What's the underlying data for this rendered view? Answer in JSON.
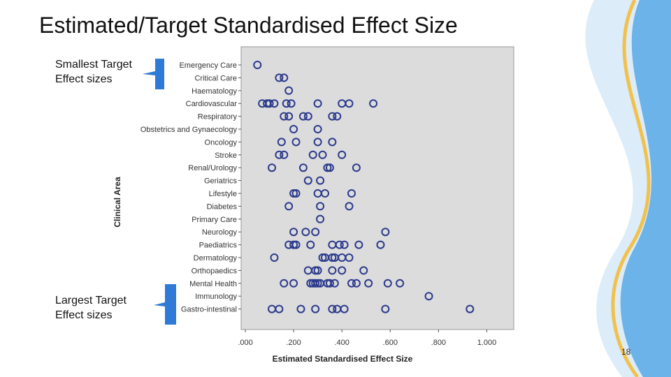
{
  "slide": {
    "title": "Estimated/Target Standardised Effect Size",
    "note_top_line1": "Smallest Target",
    "note_top_line2": "Effect sizes",
    "note_bottom_line1": "Largest Target",
    "note_bottom_line2": "Effect sizes",
    "page_number": "18"
  },
  "colors": {
    "plot_background": "#dcdcdc",
    "marker": "#2b3a8c",
    "callout": "#2f7ad6",
    "decoration": [
      "#dcecf8",
      "#57a9e6",
      "#f2c14b"
    ]
  },
  "chart_data": {
    "type": "scatter",
    "xlabel": "Estimated Standardised Effect Size",
    "ylabel": "Clinical Area",
    "xlim": [
      0,
      1.1
    ],
    "xticks": [
      0,
      0.2,
      0.4,
      0.6,
      0.8,
      1.0
    ],
    "xtick_labels": [
      ".000",
      ".200",
      ".400",
      ".600",
      ".800",
      "1.000"
    ],
    "grid": false,
    "categories": [
      "Emergency Care",
      "Critical Care",
      "Haematology",
      "Cardiovascular",
      "Respiratory",
      "Obstetrics and Gynaecology",
      "Oncology",
      "Stroke",
      "Renal/Urology",
      "Geriatrics",
      "Lifestyle",
      "Diabetes",
      "Primary Care",
      "Neurology",
      "Paediatrics",
      "Dermatology",
      "Orthopaedics",
      "Mental Health",
      "Immunology",
      "Gastro-intestinal"
    ],
    "values": [
      [
        0.05
      ],
      [
        0.14,
        0.16
      ],
      [
        0.18
      ],
      [
        0.07,
        0.09,
        0.1,
        0.12,
        0.17,
        0.19,
        0.3,
        0.4,
        0.43,
        0.53
      ],
      [
        0.16,
        0.18,
        0.24,
        0.26,
        0.36,
        0.38
      ],
      [
        0.2,
        0.3
      ],
      [
        0.15,
        0.21,
        0.3,
        0.36
      ],
      [
        0.14,
        0.16,
        0.28,
        0.32,
        0.4
      ],
      [
        0.11,
        0.24,
        0.34,
        0.35,
        0.46
      ],
      [
        0.26,
        0.31
      ],
      [
        0.2,
        0.21,
        0.3,
        0.33,
        0.44
      ],
      [
        0.18,
        0.31,
        0.43
      ],
      [
        0.31
      ],
      [
        0.2,
        0.25,
        0.29,
        0.58
      ],
      [
        0.18,
        0.2,
        0.21,
        0.27,
        0.36,
        0.39,
        0.41,
        0.47,
        0.56
      ],
      [
        0.12,
        0.32,
        0.33,
        0.36,
        0.37,
        0.4,
        0.43
      ],
      [
        0.26,
        0.29,
        0.3,
        0.36,
        0.4,
        0.49
      ],
      [
        0.16,
        0.2,
        0.27,
        0.28,
        0.29,
        0.3,
        0.31,
        0.34,
        0.35,
        0.37,
        0.44,
        0.46,
        0.51,
        0.59,
        0.64
      ],
      [
        0.76
      ],
      [
        0.11,
        0.14,
        0.23,
        0.29,
        0.36,
        0.38,
        0.41,
        0.58,
        0.93
      ]
    ]
  }
}
